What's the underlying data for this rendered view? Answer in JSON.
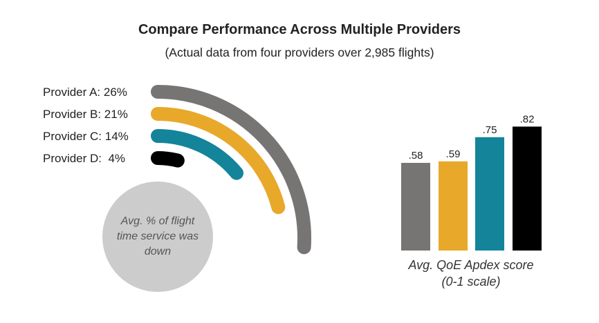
{
  "title": "Compare Performance Across Multiple Providers",
  "subtitle": "(Actual data from four providers over 2,985 flights)",
  "chart_data": [
    {
      "type": "radial-bar",
      "categories": [
        "Provider A",
        "Provider B",
        "Provider C",
        "Provider D"
      ],
      "values": [
        26,
        21,
        14,
        4
      ],
      "unit": "%",
      "labels": [
        "Provider A: 26%",
        "Provider B: 21%",
        "Provider C: 14%",
        "Provider D:  4%"
      ],
      "colors": [
        "#767574",
        "#E8A82A",
        "#13849A",
        "#000000"
      ],
      "center_label": [
        "Avg. % of flight",
        "time service was",
        "down"
      ],
      "center_color": "#CCCCCC"
    },
    {
      "type": "bar",
      "categories": [
        "Provider A",
        "Provider B",
        "Provider C",
        "Provider D"
      ],
      "values": [
        0.58,
        0.59,
        0.75,
        0.82
      ],
      "data_labels": [
        ".58",
        ".59",
        ".75",
        ".82"
      ],
      "colors": [
        "#767574",
        "#E8A82A",
        "#13849A",
        "#000000"
      ],
      "xlabel": [
        "Avg. QoE Apdex score",
        "(0-1 scale)"
      ],
      "ylim": [
        0,
        1
      ]
    }
  ]
}
